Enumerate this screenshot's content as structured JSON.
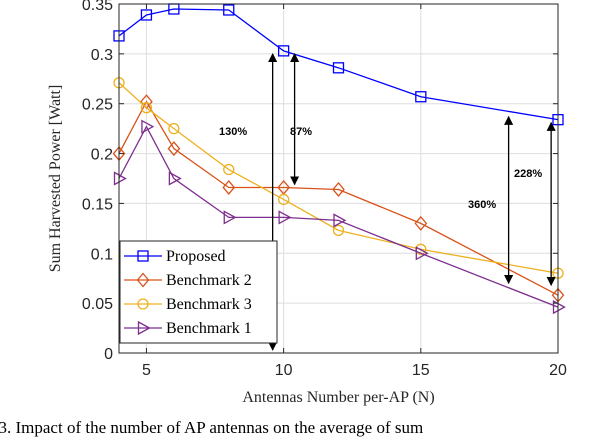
{
  "caption": ". 3.  Impact of the number of AP antennas on the average of sum",
  "chart_data": {
    "type": "line",
    "title": "",
    "xlabel": "Antennas Number per-AP (N)",
    "ylabel": "Sum Harvested Power [Watt]",
    "xlim": [
      4,
      20
    ],
    "ylim": [
      0,
      0.35
    ],
    "x_ticks": [
      5,
      10,
      15,
      20
    ],
    "y_ticks": [
      0,
      0.05,
      0.1,
      0.15,
      0.2,
      0.25,
      0.3,
      0.35
    ],
    "x_tick_labels": [
      "5",
      "10",
      "15",
      "20"
    ],
    "y_tick_labels": [
      "0",
      "0.05",
      "0.1",
      "0.15",
      "0.2",
      "0.25",
      "0.3",
      "0.35"
    ],
    "grid": true,
    "legend_position": "bottom-left",
    "series": [
      {
        "name": "Proposed",
        "color": "#0000ff",
        "marker": "square",
        "x": [
          4,
          5,
          6,
          8,
          10,
          12,
          15,
          20
        ],
        "y": [
          0.318,
          0.339,
          0.345,
          0.344,
          0.303,
          0.286,
          0.257,
          0.234
        ]
      },
      {
        "name": "Benchmark 2",
        "color": "#d95319",
        "marker": "diamond",
        "x": [
          4,
          5,
          6,
          8,
          10,
          12,
          15,
          20
        ],
        "y": [
          0.2,
          0.252,
          0.205,
          0.166,
          0.166,
          0.164,
          0.13,
          0.058
        ]
      },
      {
        "name": "Benchmark 3",
        "color": "#edb120",
        "marker": "circle",
        "x": [
          4,
          5,
          6,
          8,
          10,
          12,
          15,
          20
        ],
        "y": [
          0.271,
          0.246,
          0.225,
          0.184,
          0.154,
          0.123,
          0.104,
          0.08
        ]
      },
      {
        "name": "Benchmark 1",
        "color": "#7e2f8e",
        "marker": "triangle-right",
        "x": [
          4,
          5,
          6,
          8,
          10,
          12,
          15,
          20
        ],
        "y": [
          0.175,
          0.227,
          0.175,
          0.136,
          0.136,
          0.133,
          0.1,
          0.046
        ]
      }
    ],
    "annotations": [
      {
        "label": "130%",
        "x": 9.6,
        "y_from": 0.0,
        "y_to": 0.303
      },
      {
        "label": "87%",
        "x": 10.4,
        "y_from": 0.166,
        "y_to": 0.303
      },
      {
        "label": "360%",
        "x": 18.2,
        "y_from": 0.067,
        "y_to": 0.24
      },
      {
        "label": "228%",
        "x": 19.75,
        "y_from": 0.065,
        "y_to": 0.234
      }
    ]
  }
}
